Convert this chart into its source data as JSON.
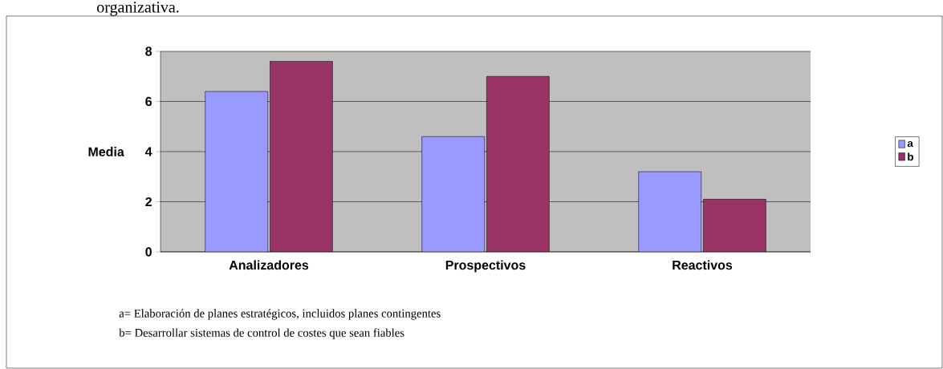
{
  "chart_data": {
    "type": "bar",
    "ylabel": "Media",
    "categories": [
      "Analizadores",
      "Prospectivos",
      "Reactivos"
    ],
    "series": [
      {
        "name": "a",
        "color": "#9999ff",
        "values": [
          6.4,
          4.6,
          3.2
        ]
      },
      {
        "name": "b",
        "color": "#993366",
        "values": [
          7.6,
          7.0,
          2.1
        ]
      }
    ],
    "ylim": [
      0,
      8
    ],
    "yticks": [
      0,
      2,
      4,
      6,
      8
    ],
    "grid": "y",
    "legend": "right",
    "annotations": [
      "organizativa.",
      "a= Elaboración de planes estratégicos, incluidos planes contingentes",
      "b= Desarrollar sistemas de control de costes que sean fiables"
    ]
  }
}
